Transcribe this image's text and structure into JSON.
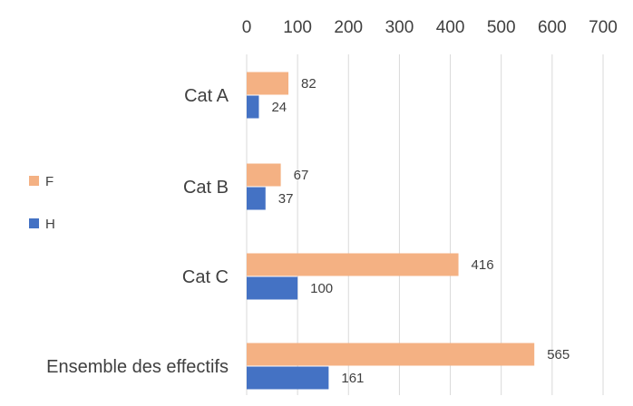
{
  "chart_data": {
    "type": "bar",
    "orientation": "horizontal",
    "categories": [
      "Cat A",
      "Cat B",
      "Cat C",
      "Ensemble des effectifs"
    ],
    "series": [
      {
        "name": "F",
        "values": [
          82,
          67,
          416,
          565
        ],
        "color": "#F4B183"
      },
      {
        "name": "H",
        "values": [
          24,
          37,
          100,
          161
        ],
        "color": "#4472C4"
      }
    ],
    "xlim": [
      0,
      700
    ],
    "xticks": [
      0,
      100,
      200,
      300,
      400,
      500,
      600,
      700
    ],
    "x_axis_position": "top",
    "grid": true,
    "gridline_color": "#D9D9D9",
    "legend_position": "left",
    "title": "",
    "xlabel": "",
    "ylabel": ""
  }
}
